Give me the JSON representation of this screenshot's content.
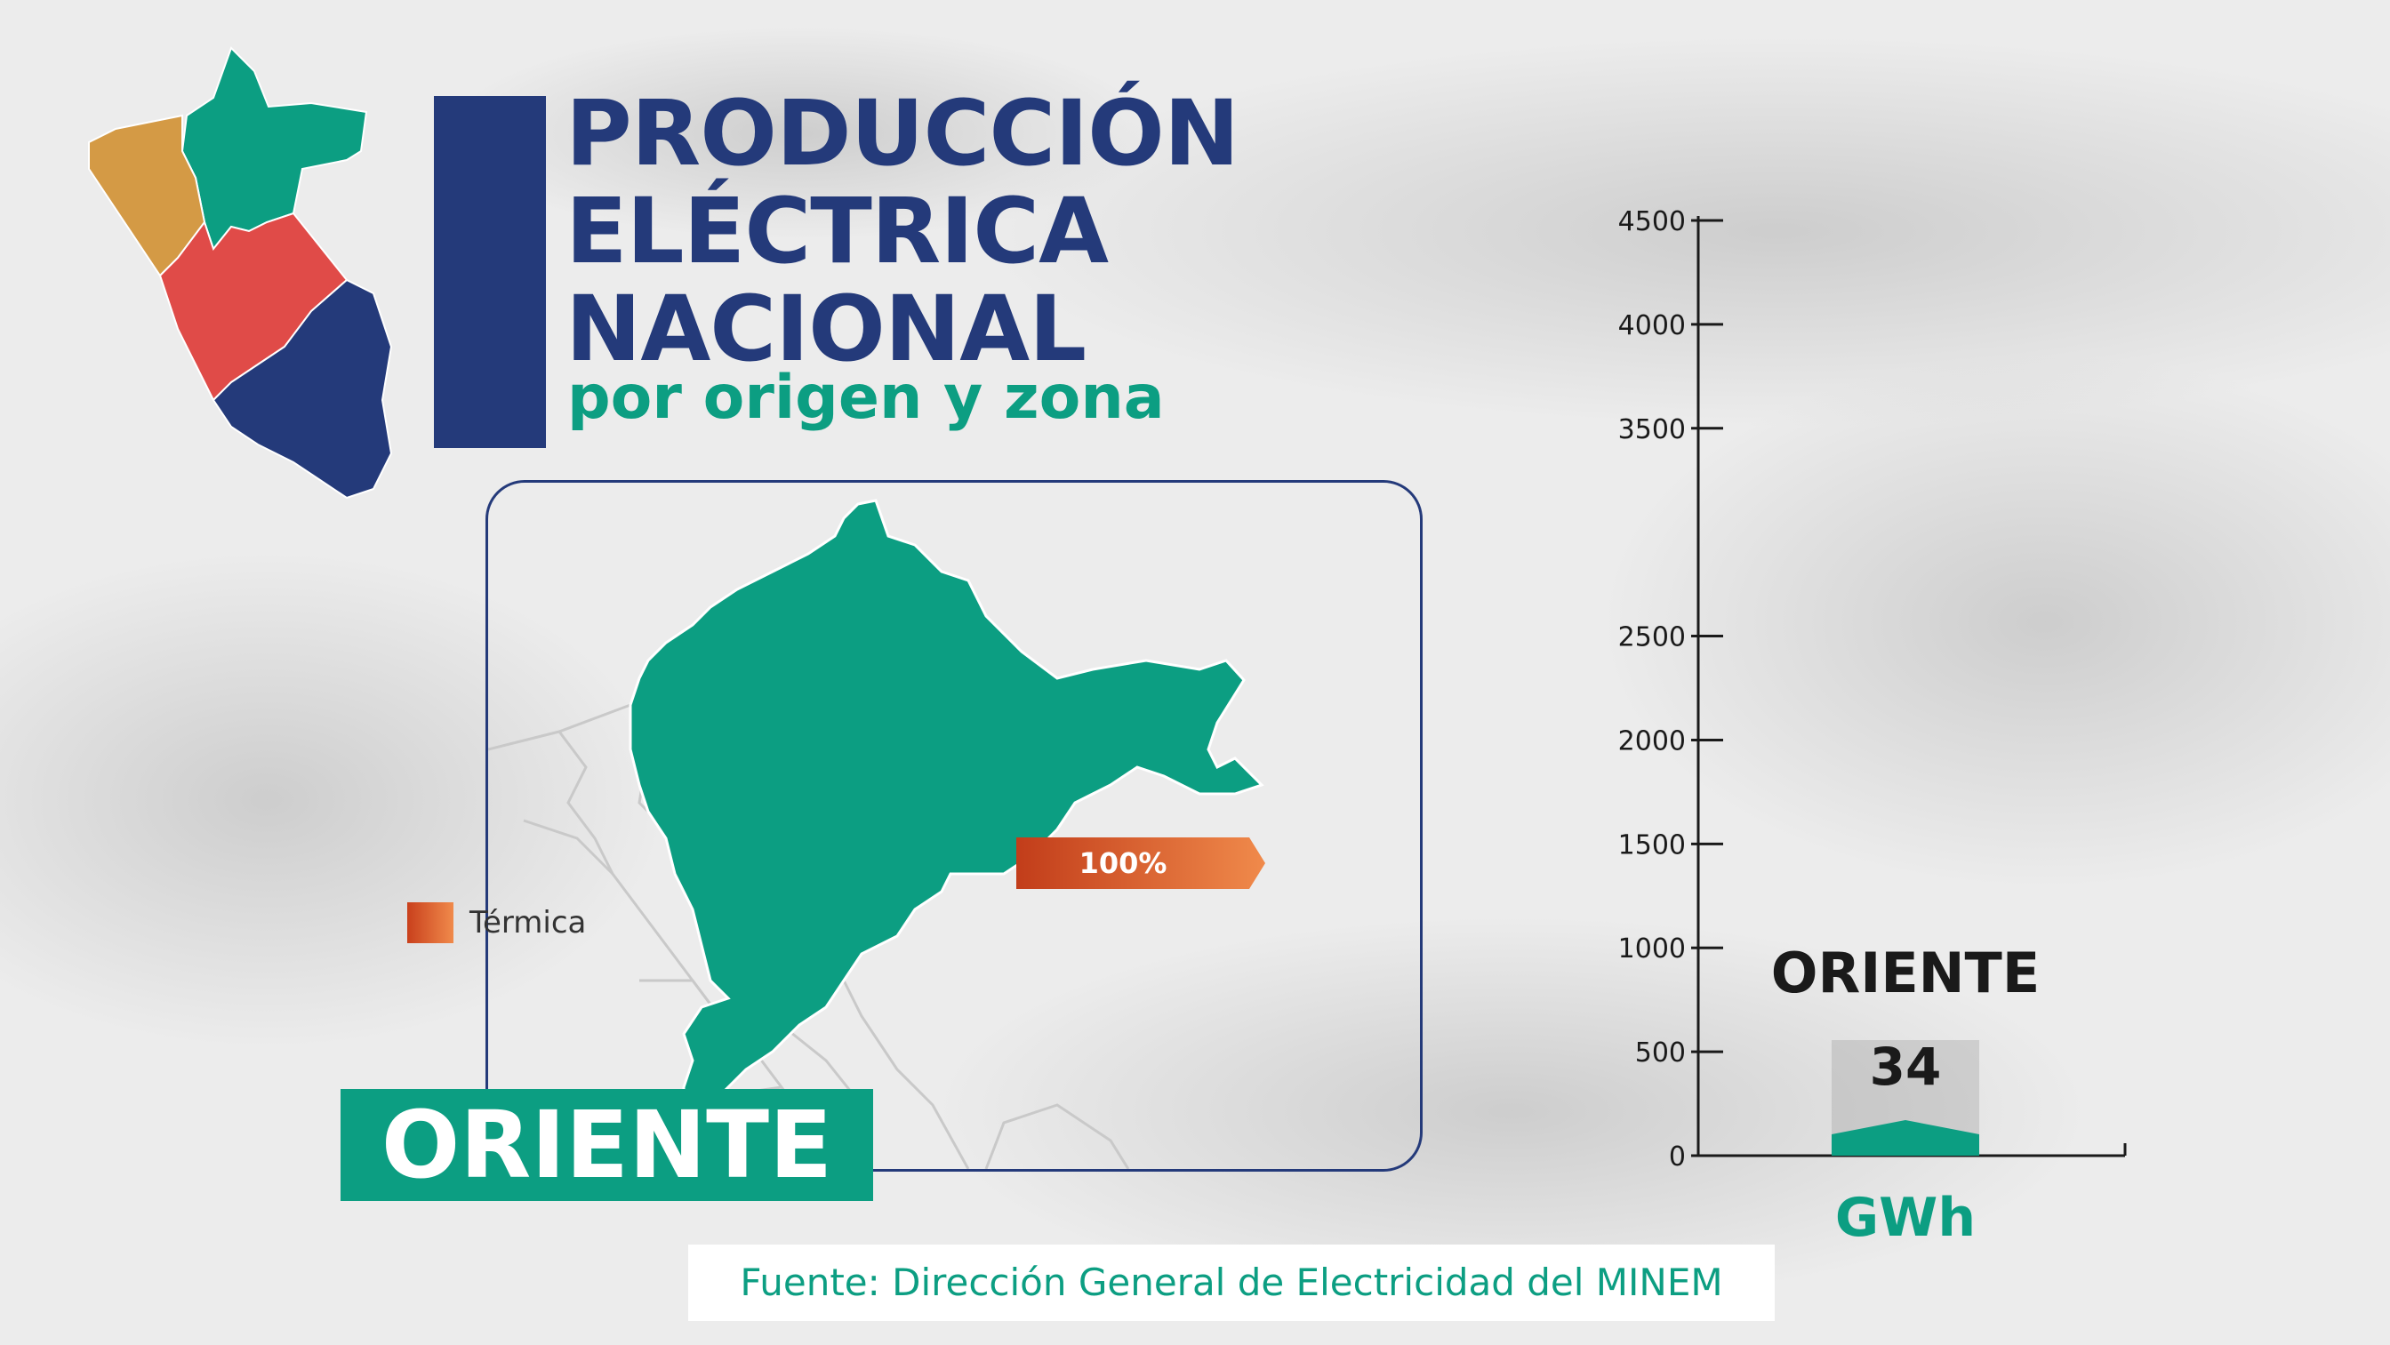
{
  "title_lines": [
    "PRODUCCIÓN",
    "ELÉCTRICA",
    "NACIONAL"
  ],
  "subtitle": "por origen y zona",
  "region_label": "ORIENTE",
  "legend": {
    "label": "Térmica",
    "color": "#e0602e"
  },
  "share_label": "100%",
  "source": "Fuente: Dirección General de Electricidad del MINEM",
  "colors": {
    "navy": "#243a7a",
    "teal": "#0c9e82",
    "orange": "#e0602e",
    "ochre": "#d49a45",
    "red": "#e04b48"
  },
  "chart_data": {
    "type": "bar",
    "categories": [
      "ORIENTE"
    ],
    "values": [
      34
    ],
    "value_labels": [
      "34"
    ],
    "ylabel": "GWh",
    "yticks": [
      0,
      500,
      1000,
      1500,
      2000,
      2500,
      3500,
      4000,
      4500
    ],
    "ylim": [
      0,
      4500
    ]
  }
}
